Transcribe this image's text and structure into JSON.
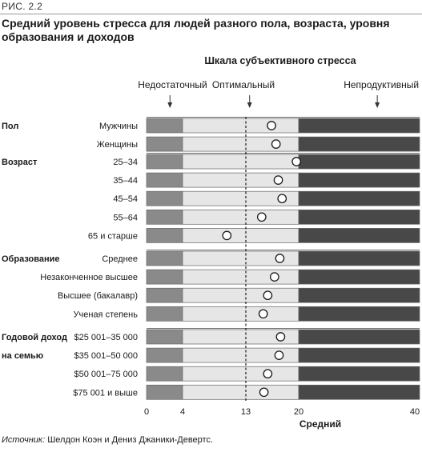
{
  "figure_label": "РИС. 2.2",
  "source_label": "Источник:",
  "source_text": " Шелдон Коэн и Дениз Джаники-Девертс.",
  "chart_data": {
    "type": "scatter",
    "title": "Средний уровень стресса для людей разного пола, возраста, уровня образования и доходов",
    "scale_title": "Шкала субъективного стресса",
    "zones": [
      {
        "label": "Недостаточный",
        "from": 0,
        "to": 4,
        "arrow_at": 2.6,
        "color": "#8a8a8a"
      },
      {
        "label": "Оптимальный",
        "from": 4,
        "to": 20,
        "arrow_at": 13.5,
        "color": "#e6e6e6"
      },
      {
        "label": "Непродуктивный",
        "from": 20,
        "to": 40,
        "arrow_at": 33,
        "color": "#484848"
      }
    ],
    "reference_line": {
      "value": 13,
      "style": "dashed"
    },
    "x_ticks": [
      0,
      4,
      13,
      20,
      40
    ],
    "xlabel": "Средний",
    "xlim": [
      0,
      40
    ],
    "groups": [
      {
        "label": "Пол",
        "rows": [
          {
            "label": "Мужчины",
            "value": 16.4
          },
          {
            "label": "Женщины",
            "value": 17.0
          }
        ]
      },
      {
        "label": "Возраст",
        "rows": [
          {
            "label": "25–34",
            "value": 19.7
          },
          {
            "label": "35–44",
            "value": 17.3
          },
          {
            "label": "45–54",
            "value": 17.8
          },
          {
            "label": "55–64",
            "value": 15.1
          },
          {
            "label": "65 и старше",
            "value": 10.3
          }
        ]
      },
      {
        "label": "Образование",
        "rows": [
          {
            "label": "Среднее",
            "value": 17.5
          },
          {
            "label": "Незаконченное высшее",
            "value": 16.8
          },
          {
            "label": "Высшее (бакалавр)",
            "value": 15.9
          },
          {
            "label": "Ученая степень",
            "value": 15.3
          }
        ]
      },
      {
        "label": "Годовой доход",
        "label2": "на семью",
        "rows": [
          {
            "label": "$25 001–35 000",
            "value": 17.6
          },
          {
            "label": "$35 001–50 000",
            "value": 17.4
          },
          {
            "label": "$50 001–75 000",
            "value": 15.9
          },
          {
            "label": "$75 001 и выше",
            "value": 15.4
          }
        ]
      }
    ]
  }
}
